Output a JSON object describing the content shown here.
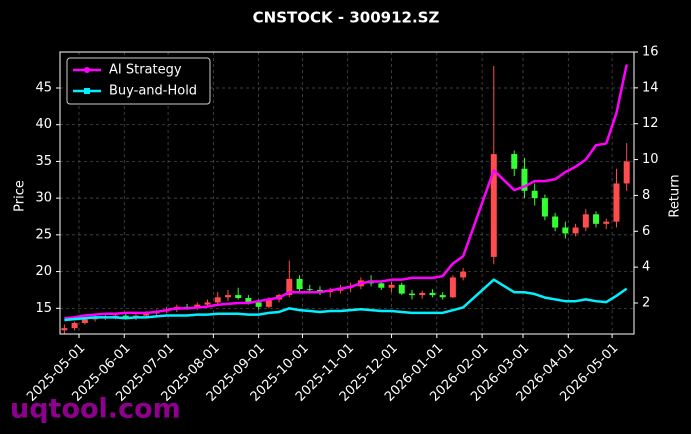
{
  "chart_data": {
    "type": "candlestick",
    "title": "CNSTOCK - 300912.SZ",
    "ylabel": "Price",
    "y2label": "Return",
    "watermark": "uqtool.com",
    "x": [
      "2025-04-21",
      "2025-04-28",
      "2025-05-05",
      "2025-05-12",
      "2025-05-19",
      "2025-05-26",
      "2025-06-02",
      "2025-06-09",
      "2025-06-16",
      "2025-06-23",
      "2025-06-30",
      "2025-07-07",
      "2025-07-14",
      "2025-07-21",
      "2025-07-28",
      "2025-08-04",
      "2025-08-11",
      "2025-08-18",
      "2025-08-25",
      "2025-09-01",
      "2025-09-08",
      "2025-09-15",
      "2025-09-22",
      "2025-09-29",
      "2025-10-06",
      "2025-10-13",
      "2025-10-20",
      "2025-10-27",
      "2025-11-03",
      "2025-11-10",
      "2025-11-17",
      "2025-11-24",
      "2025-12-01",
      "2025-12-08",
      "2025-12-15",
      "2025-12-22",
      "2025-12-29",
      "2026-01-05",
      "2026-01-12",
      "2026-01-19",
      "2026-02-09",
      "2026-02-23",
      "2026-03-02",
      "2026-03-09",
      "2026-03-16",
      "2026-03-23",
      "2026-03-30",
      "2026-04-06",
      "2026-04-13",
      "2026-04-20",
      "2026-04-27",
      "2026-05-04",
      "2026-05-11"
    ],
    "open": [
      12.0,
      12.3,
      13.0,
      13.5,
      13.8,
      13.9,
      14.0,
      13.8,
      14.0,
      14.3,
      14.6,
      14.8,
      15.2,
      15.0,
      15.5,
      15.8,
      16.5,
      16.8,
      16.4,
      15.8,
      15.2,
      16.2,
      16.8,
      19.0,
      17.6,
      17.5,
      17.2,
      17.4,
      17.8,
      18.0,
      18.8,
      18.4,
      17.8,
      18.2,
      17.0,
      16.8,
      17.1,
      16.8,
      16.5,
      19.2,
      22.0,
      36.0,
      34.0,
      31.0,
      30.0,
      27.5,
      26.0,
      25.2,
      26.0,
      27.8,
      26.5,
      26.8,
      32.0
    ],
    "high": [
      12.8,
      13.2,
      13.8,
      14.2,
      14.3,
      14.4,
      14.5,
      14.2,
      14.6,
      14.8,
      15.2,
      15.5,
      15.6,
      15.8,
      16.2,
      17.2,
      17.5,
      17.8,
      16.8,
      16.2,
      16.5,
      17.0,
      21.5,
      19.5,
      18.2,
      18.0,
      17.8,
      18.2,
      18.5,
      19.2,
      19.5,
      18.8,
      18.6,
      18.5,
      17.5,
      17.4,
      17.6,
      17.2,
      19.5,
      20.5,
      48.0,
      36.5,
      35.5,
      32.0,
      30.5,
      28.0,
      26.8,
      26.5,
      28.5,
      28.2,
      27.2,
      34.0,
      37.5
    ],
    "low": [
      11.5,
      12.0,
      12.8,
      13.2,
      13.4,
      13.5,
      13.6,
      13.4,
      13.7,
      14.0,
      14.3,
      14.5,
      14.8,
      14.8,
      15.2,
      15.5,
      16.0,
      16.2,
      15.5,
      14.8,
      15.0,
      15.8,
      16.5,
      17.0,
      17.0,
      16.8,
      16.5,
      17.0,
      17.2,
      17.6,
      18.0,
      17.5,
      17.2,
      16.8,
      16.2,
      16.3,
      16.5,
      16.2,
      16.4,
      18.8,
      21.0,
      33.0,
      30.0,
      29.0,
      27.0,
      25.5,
      24.5,
      24.8,
      25.5,
      26.0,
      25.8,
      26.0,
      31.0
    ],
    "close": [
      12.3,
      13.0,
      13.5,
      13.8,
      13.9,
      14.0,
      13.8,
      14.0,
      14.3,
      14.6,
      14.8,
      15.2,
      15.0,
      15.5,
      15.8,
      16.5,
      16.8,
      16.4,
      15.8,
      15.2,
      16.2,
      16.8,
      19.0,
      17.6,
      17.5,
      17.2,
      17.4,
      17.8,
      18.0,
      18.8,
      18.4,
      17.8,
      18.2,
      17.0,
      16.8,
      17.1,
      16.8,
      16.5,
      19.2,
      20.0,
      36.0,
      34.0,
      31.0,
      30.0,
      27.5,
      26.0,
      25.2,
      26.0,
      27.8,
      26.5,
      26.8,
      32.0,
      35.0
    ],
    "up_color": "#ff4d4d",
    "down_color": "#33ff33",
    "series": [
      {
        "name": "AI Strategy",
        "color": "#ff00ff",
        "axis": "y2",
        "values": [
          1.15,
          1.2,
          1.3,
          1.35,
          1.4,
          1.4,
          1.45,
          1.45,
          1.45,
          1.5,
          1.6,
          1.7,
          1.7,
          1.75,
          1.8,
          1.9,
          1.95,
          2.0,
          2.0,
          2.1,
          2.2,
          2.3,
          2.6,
          2.6,
          2.6,
          2.6,
          2.7,
          2.8,
          2.9,
          3.1,
          3.2,
          3.2,
          3.3,
          3.3,
          3.4,
          3.4,
          3.4,
          3.5,
          4.2,
          4.6,
          9.4,
          8.3,
          8.5,
          8.8,
          8.8,
          8.9,
          9.3,
          9.6,
          10.0,
          10.8,
          10.9,
          12.6,
          15.3
        ]
      },
      {
        "name": "Buy-and-Hold",
        "color": "#00f0ff",
        "axis": "y2",
        "values": [
          1.05,
          1.1,
          1.15,
          1.2,
          1.2,
          1.2,
          1.15,
          1.2,
          1.2,
          1.25,
          1.3,
          1.3,
          1.3,
          1.35,
          1.35,
          1.4,
          1.4,
          1.4,
          1.35,
          1.35,
          1.45,
          1.5,
          1.7,
          1.6,
          1.55,
          1.5,
          1.55,
          1.55,
          1.6,
          1.65,
          1.6,
          1.55,
          1.55,
          1.5,
          1.45,
          1.45,
          1.45,
          1.45,
          1.6,
          1.75,
          3.3,
          2.6,
          2.6,
          2.5,
          2.3,
          2.2,
          2.1,
          2.1,
          2.2,
          2.1,
          2.05,
          2.4,
          2.8
        ]
      }
    ],
    "xlim": [
      "2025-04-18",
      "2026-05-16"
    ],
    "xticks": [
      "2025-05-01",
      "2025-06-01",
      "2025-07-01",
      "2025-08-01",
      "2025-09-01",
      "2025-10-01",
      "2025-11-01",
      "2025-12-01",
      "2026-01-01",
      "2026-02-01",
      "2026-03-01",
      "2026-04-01",
      "2026-05-01"
    ],
    "ylim": [
      11.5,
      49.9
    ],
    "yticks": [
      15,
      20,
      25,
      30,
      35,
      40,
      45
    ],
    "y2lim": [
      0.27,
      16
    ],
    "y2ticks": [
      2,
      4,
      6,
      8,
      10,
      12,
      14,
      16
    ],
    "grid": true,
    "legend": "upper left"
  }
}
